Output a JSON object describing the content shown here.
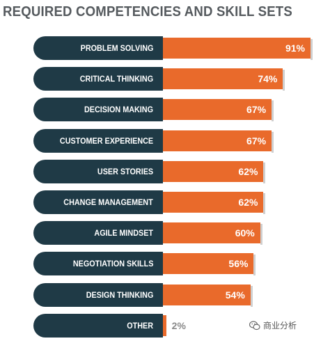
{
  "chart_data": {
    "type": "bar",
    "orientation": "horizontal",
    "title": "REQUIRED COMPETENCIES AND SKILL SETS",
    "categories": [
      "PROBLEM SOLVING",
      "CRITICAL THINKING",
      "DECISION MAKING",
      "CUSTOMER EXPERIENCE",
      "USER STORIES",
      "CHANGE MANAGEMENT",
      "AGILE MINDSET",
      "NEGOTIATION SKILLS",
      "DESIGN THINKING",
      "OTHER"
    ],
    "values": [
      91,
      74,
      67,
      67,
      62,
      62,
      60,
      56,
      54,
      2
    ],
    "value_labels": [
      "91%",
      "74%",
      "67%",
      "67%",
      "62%",
      "62%",
      "60%",
      "56%",
      "54%",
      "2%"
    ],
    "xlim": [
      0,
      100
    ],
    "grid": false,
    "legend": "none",
    "colors": {
      "bar": "#e96a2b",
      "label_pill": "#1f3a46",
      "title": "#555a5e"
    }
  },
  "watermark": {
    "text": "商业分析",
    "icon": "wechat-icon"
  }
}
